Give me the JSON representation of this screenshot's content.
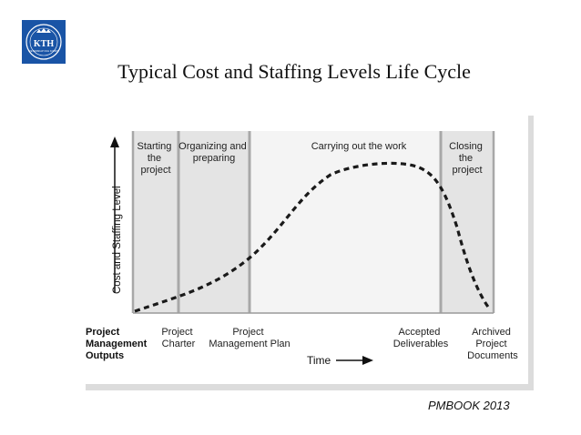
{
  "slide": {
    "title": "Typical Cost and Staffing Levels Life Cycle",
    "source": "PMBOOK 2013"
  },
  "logo": {
    "text": "KTH",
    "subtext": "VETENSKAP OCH KONST",
    "color": "#1954a6"
  },
  "diagram": {
    "y_axis_label": "Cost and Staffing Level",
    "x_axis_label": "Time",
    "outputs_heading": [
      "Project",
      "Management",
      "Outputs"
    ],
    "phases": [
      {
        "label": [
          "Starting",
          "the",
          "project"
        ]
      },
      {
        "label": [
          "Organizing and",
          "preparing"
        ]
      },
      {
        "label": [
          "Carrying out the work"
        ]
      },
      {
        "label": [
          "Closing",
          "the",
          "project"
        ]
      }
    ],
    "outputs": [
      {
        "label": [
          "Project",
          "Charter"
        ]
      },
      {
        "label": [
          "Project",
          "Management Plan"
        ]
      },
      {
        "label": [
          "Accepted",
          "Deliverables"
        ]
      },
      {
        "label": [
          "Archived",
          "Project",
          "Documents"
        ]
      }
    ],
    "colors": {
      "shaded_phase": "#e4e4e4",
      "work_phase": "#f4f4f4",
      "divider": "#a8a8a8",
      "curve": "#1a1a1a"
    }
  }
}
